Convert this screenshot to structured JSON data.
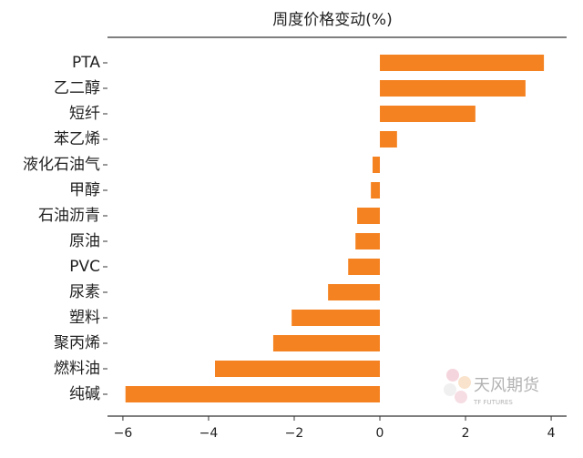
{
  "chart_data": {
    "type": "barh",
    "title": "周度价格变动(%)",
    "categories": [
      "PTA",
      "乙二醇",
      "短纤",
      "苯乙烯",
      "液化石油气",
      "甲醇",
      "石油沥青",
      "原油",
      "PVC",
      "尿素",
      "塑料",
      "聚丙烯",
      "燃料油",
      "纯碱"
    ],
    "values": [
      3.83,
      3.4,
      2.23,
      0.4,
      -0.17,
      -0.21,
      -0.53,
      -0.57,
      -0.74,
      -1.21,
      -2.06,
      -2.49,
      -3.85,
      -5.94
    ],
    "color": "#f58220",
    "xlim": [
      -6.36,
      4.36
    ],
    "xticks": [
      {
        "value": -6,
        "label": "−6"
      },
      {
        "value": -4,
        "label": "−4"
      },
      {
        "value": -2,
        "label": "−2"
      },
      0,
      2,
      4
    ],
    "watermark": {
      "text": "天风期货",
      "subtext": "TF FUTURES"
    }
  }
}
